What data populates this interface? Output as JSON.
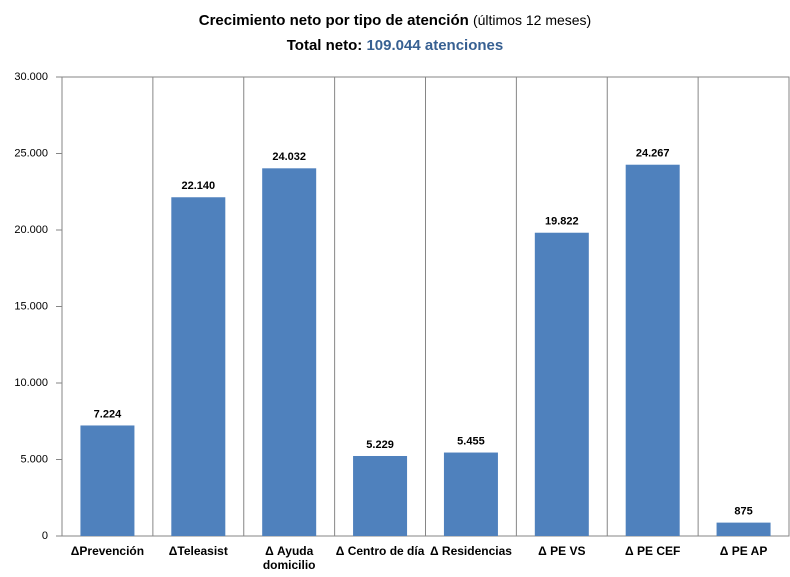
{
  "chart_data": {
    "type": "bar",
    "title": "Crecimiento neto por tipo de atención",
    "title_note": "(últimos 12 meses)",
    "subtitle_label": "Total neto:",
    "subtitle_value": "109.044 atenciones",
    "categories": [
      "ΔPrevención",
      "ΔTeleasist",
      "Δ Ayuda domicilio",
      "Δ Centro de día",
      "Δ Residencias",
      "Δ PE VS",
      "Δ PE CEF",
      "Δ PE AP"
    ],
    "values": [
      7224,
      22140,
      24032,
      5229,
      5455,
      19822,
      24267,
      875
    ],
    "value_labels": [
      "7.224",
      "22.140",
      "24.032",
      "5.229",
      "5.455",
      "19.822",
      "24.267",
      "875"
    ],
    "color": "#4f81bd",
    "ylim": [
      0,
      30000
    ],
    "yticks": [
      0,
      {
        "value": 5000,
        "label": "5.000"
      },
      {
        "value": 10000,
        "label": "10.000"
      },
      {
        "value": 15000,
        "label": "15.000"
      },
      {
        "value": 20000,
        "label": "20.000"
      },
      {
        "value": 25000,
        "label": "25.000"
      },
      {
        "value": 30000,
        "label": "30.000"
      }
    ]
  }
}
